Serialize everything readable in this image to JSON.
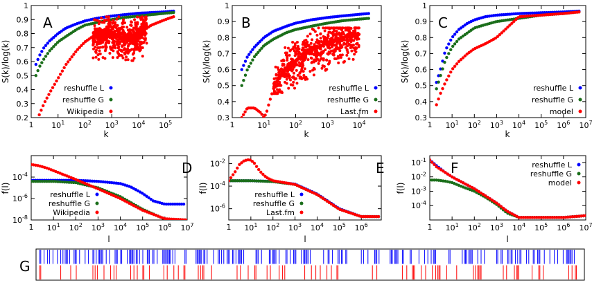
{
  "colors": {
    "L": "#0000ff",
    "G": "#1a6e1a",
    "data": "#ff0000",
    "axis": "#000000"
  },
  "chart_data": [
    {
      "id": "A",
      "type": "scatter",
      "panel_label": "A",
      "xlabel": "k",
      "ylabel": "S(k)/log(k)",
      "xscale": "log",
      "xlim": [
        1,
        400000
      ],
      "ylim": [
        0.2,
        1.0
      ],
      "xticks": [
        1,
        10,
        100,
        1000,
        10000,
        100000
      ],
      "yticks": [
        0.2,
        0.3,
        0.4,
        0.5,
        0.6,
        0.7,
        0.8,
        0.9,
        1
      ],
      "legend": [
        "reshuffle L",
        "reshuffle G",
        "Wikipedia"
      ],
      "series": [
        {
          "name": "reshuffle L",
          "color": "#0000ff",
          "x": [
            1.5,
            2,
            3,
            5,
            10,
            20,
            50,
            100,
            300,
            1000,
            3000,
            10000,
            30000,
            100000,
            200000
          ],
          "y": [
            0.58,
            0.64,
            0.7,
            0.75,
            0.8,
            0.84,
            0.87,
            0.89,
            0.91,
            0.925,
            0.935,
            0.945,
            0.95,
            0.955,
            0.96
          ]
        },
        {
          "name": "reshuffle G",
          "color": "#1a6e1a",
          "x": [
            1.5,
            2,
            3,
            5,
            10,
            20,
            50,
            100,
            300,
            1000,
            3000,
            10000,
            30000,
            100000,
            200000
          ],
          "y": [
            0.5,
            0.56,
            0.62,
            0.68,
            0.74,
            0.78,
            0.83,
            0.86,
            0.88,
            0.9,
            0.915,
            0.925,
            0.935,
            0.945,
            0.95
          ]
        },
        {
          "name": "Wikipedia",
          "color": "#ff0000",
          "x": [
            2,
            3,
            5,
            10,
            20,
            50,
            100,
            200,
            500,
            1000,
            2000,
            5000,
            10000,
            30000,
            100000,
            200000
          ],
          "y": [
            0.22,
            0.3,
            0.38,
            0.48,
            0.58,
            0.68,
            0.74,
            0.78,
            0.8,
            0.8,
            0.78,
            0.76,
            0.8,
            0.86,
            0.9,
            0.92
          ],
          "scatter_spread": {
            "x_range": [
              200,
              20000
            ],
            "y_range": [
              0.3,
              0.92
            ]
          }
        }
      ]
    },
    {
      "id": "B",
      "type": "scatter",
      "panel_label": "B",
      "xlabel": "k",
      "ylabel": "S(k)/log(k)",
      "xscale": "log",
      "xlim": [
        1,
        50000
      ],
      "ylim": [
        0.3,
        1.0
      ],
      "xticks": [
        1,
        10,
        100,
        1000,
        10000
      ],
      "yticks": [
        0.3,
        0.4,
        0.5,
        0.6,
        0.7,
        0.8,
        0.9,
        1
      ],
      "legend": [
        "reshuffle L",
        "reshuffle G",
        "Last.fm"
      ],
      "series": [
        {
          "name": "reshuffle L",
          "color": "#0000ff",
          "x": [
            2,
            3,
            5,
            10,
            20,
            50,
            100,
            300,
            1000,
            3000,
            10000,
            20000
          ],
          "y": [
            0.6,
            0.68,
            0.74,
            0.8,
            0.84,
            0.87,
            0.89,
            0.91,
            0.925,
            0.935,
            0.945,
            0.95
          ]
        },
        {
          "name": "reshuffle G",
          "color": "#1a6e1a",
          "x": [
            2,
            3,
            5,
            10,
            20,
            50,
            100,
            300,
            1000,
            3000,
            10000,
            20000
          ],
          "y": [
            0.5,
            0.6,
            0.68,
            0.75,
            0.79,
            0.83,
            0.85,
            0.87,
            0.89,
            0.905,
            0.915,
            0.92
          ]
        },
        {
          "name": "Last.fm",
          "color": "#ff0000",
          "x": [
            2,
            3,
            5,
            8,
            10,
            12,
            15,
            20,
            30,
            50,
            100,
            200,
            500,
            1000,
            3000,
            10000
          ],
          "y": [
            0.3,
            0.36,
            0.36,
            0.33,
            0.3,
            0.33,
            0.4,
            0.48,
            0.55,
            0.6,
            0.65,
            0.7,
            0.74,
            0.77,
            0.8,
            0.82
          ],
          "scatter_spread": {
            "x_range": [
              20,
              10000
            ],
            "y_range": [
              0.45,
              0.86
            ]
          }
        }
      ]
    },
    {
      "id": "C",
      "type": "scatter",
      "panel_label": "C",
      "xlabel": "k",
      "ylabel": "S(k)/log(k)",
      "xscale": "log",
      "xlim": [
        1,
        10000000
      ],
      "ylim": [
        0.3,
        1.0
      ],
      "xticks": [
        1,
        10,
        100,
        1000,
        10000,
        100000,
        1000000,
        10000000
      ],
      "yticks": [
        0.3,
        0.4,
        0.5,
        0.6,
        0.7,
        0.8,
        0.9,
        1
      ],
      "legend": [
        "reshuffle L",
        "reshuffle G",
        "model"
      ],
      "series": [
        {
          "name": "reshuffle L",
          "color": "#0000ff",
          "x": [
            2,
            3,
            5,
            10,
            20,
            50,
            100,
            300,
            1000,
            10000,
            100000,
            1000000,
            5000000
          ],
          "y": [
            0.52,
            0.6,
            0.72,
            0.8,
            0.85,
            0.89,
            0.91,
            0.93,
            0.94,
            0.95,
            0.955,
            0.96,
            0.965
          ]
        },
        {
          "name": "reshuffle G",
          "color": "#1a6e1a",
          "x": [
            2,
            3,
            5,
            10,
            20,
            50,
            100,
            300,
            1000,
            10000,
            100000,
            1000000,
            5000000
          ],
          "y": [
            0.48,
            0.56,
            0.66,
            0.74,
            0.79,
            0.83,
            0.86,
            0.88,
            0.9,
            0.92,
            0.94,
            0.95,
            0.96
          ]
        },
        {
          "name": "model",
          "color": "#ff0000",
          "x": [
            2,
            3,
            5,
            10,
            20,
            50,
            100,
            300,
            1000,
            10000,
            100000,
            1000000,
            5000000
          ],
          "y": [
            0.38,
            0.45,
            0.52,
            0.6,
            0.65,
            0.7,
            0.73,
            0.76,
            0.8,
            0.93,
            0.94,
            0.95,
            0.96
          ]
        }
      ]
    },
    {
      "id": "D",
      "type": "scatter",
      "panel_label": "D",
      "xlabel": "l",
      "ylabel": "f(l)",
      "xscale": "log",
      "yscale": "log",
      "xlim": [
        1,
        10000000
      ],
      "ylim": [
        1e-08,
        0.01
      ],
      "xticks": [
        1,
        10,
        100,
        1000,
        10000,
        100000,
        1000000,
        10000000
      ],
      "yticks": [
        1e-08,
        1e-06,
        0.0001
      ],
      "legend": [
        "reshuffle L",
        "reshuffle G",
        "Wikipedia"
      ],
      "series": [
        {
          "name": "reshuffle L",
          "color": "#0000ff",
          "x": [
            1,
            10,
            100,
            1000,
            10000,
            30000,
            100000,
            300000,
            1000000,
            3000000,
            7000000
          ],
          "y": [
            5e-05,
            5e-05,
            5e-05,
            4e-05,
            2.5e-05,
            1.2e-05,
            3e-06,
            6e-07,
            3e-07,
            3e-07,
            3e-07
          ]
        },
        {
          "name": "reshuffle G",
          "color": "#1a6e1a",
          "x": [
            1,
            10,
            100,
            1000,
            10000,
            100000,
            1000000,
            10000000
          ],
          "y": [
            4e-05,
            4e-05,
            3e-05,
            1e-05,
            1.5e-06,
            1e-07,
            1.2e-08,
            1e-08
          ]
        },
        {
          "name": "Wikipedia",
          "color": "#ff0000",
          "x": [
            1,
            2,
            5,
            10,
            100,
            1000,
            10000,
            100000,
            1000000,
            10000000
          ],
          "y": [
            0.0015,
            0.0012,
            0.0007,
            0.0004,
            6e-05,
            8e-06,
            1e-06,
            8e-08,
            1.3e-08,
            1e-08
          ]
        }
      ]
    },
    {
      "id": "E",
      "type": "scatter",
      "panel_label": "E",
      "xlabel": "l",
      "ylabel": "f(l)",
      "xscale": "log",
      "yscale": "log",
      "xlim": [
        1,
        8000000
      ],
      "ylim": [
        1e-07,
        0.05
      ],
      "xticks": [
        1,
        10,
        100,
        1000,
        10000,
        100000,
        1000000
      ],
      "yticks": [
        1e-06,
        0.0001,
        0.01
      ],
      "legend": [
        "reshuffle L",
        "reshuffle G",
        "Last.fm"
      ],
      "series": [
        {
          "name": "reshuffle L",
          "color": "#0000ff",
          "x": [
            1,
            10,
            100,
            1000,
            10000,
            100000,
            1000000,
            6000000
          ],
          "y": [
            0.0003,
            0.0003,
            0.00026,
            0.00015,
            2e-05,
            1e-06,
            2e-07,
            2e-07
          ]
        },
        {
          "name": "reshuffle G",
          "color": "#1a6e1a",
          "x": [
            1,
            10,
            100,
            1000,
            10000,
            100000,
            1000000,
            6000000
          ],
          "y": [
            0.0003,
            0.0003,
            0.00025,
            0.00014,
            1.8e-05,
            9e-07,
            2e-07,
            2e-07
          ]
        },
        {
          "name": "Last.fm",
          "color": "#ff0000",
          "x": [
            1,
            2,
            3,
            5,
            8,
            10,
            15,
            20,
            30,
            50,
            100,
            1000,
            10000,
            100000,
            1000000,
            6000000
          ],
          "y": [
            0.0003,
            0.002,
            0.008,
            0.018,
            0.022,
            0.02,
            0.01,
            0.004,
            0.0015,
            0.0006,
            0.0003,
            0.00014,
            1.8e-05,
            9e-07,
            2e-07,
            2e-07
          ]
        }
      ]
    },
    {
      "id": "F",
      "type": "scatter",
      "panel_label": "F",
      "xlabel": "l",
      "ylabel": "f(l)",
      "xscale": "log",
      "yscale": "log",
      "xlim": [
        1,
        10000000
      ],
      "ylim": [
        1e-05,
        0.3
      ],
      "xticks": [
        1,
        10,
        100,
        1000,
        10000,
        100000,
        1000000,
        10000000
      ],
      "yticks": [
        0.0001,
        0.001,
        0.01,
        0.1
      ],
      "legend": [
        "reshuffle L",
        "reshuffle G",
        "model"
      ],
      "series": [
        {
          "name": "reshuffle L",
          "color": "#0000ff",
          "x": [
            1,
            2,
            5,
            10,
            30,
            100,
            300,
            1000,
            3000,
            10000,
            100000,
            1000000,
            10000000
          ],
          "y": [
            0.15,
            0.06,
            0.02,
            0.01,
            0.004,
            0.0015,
            0.0005,
            0.00015,
            4e-05,
            1.5e-05,
            1.5e-05,
            1.5e-05,
            2e-05
          ]
        },
        {
          "name": "reshuffle G",
          "color": "#1a6e1a",
          "x": [
            1,
            2,
            5,
            10,
            30,
            100,
            300,
            1000,
            3000,
            10000,
            100000,
            1000000,
            10000000
          ],
          "y": [
            0.006,
            0.006,
            0.005,
            0.004,
            0.002,
            0.001,
            0.0004,
            0.00012,
            3e-05,
            1.5e-05,
            1.5e-05,
            1.5e-05,
            2e-05
          ]
        },
        {
          "name": "model",
          "color": "#ff0000",
          "x": [
            1,
            2,
            5,
            10,
            30,
            100,
            300,
            1000,
            3000,
            10000,
            100000,
            1000000,
            10000000
          ],
          "y": [
            0.15,
            0.05,
            0.02,
            0.01,
            0.004,
            0.0015,
            0.0005,
            0.00015,
            4e-05,
            1.5e-05,
            1.5e-05,
            1.5e-05,
            2e-05
          ]
        }
      ]
    },
    {
      "id": "G",
      "type": "raster",
      "panel_label": "G",
      "series": [
        {
          "name": "blue events",
          "color": "#0000ff",
          "density": 0.72
        },
        {
          "name": "red events",
          "color": "#ff0000",
          "density": 0.33
        }
      ]
    }
  ]
}
